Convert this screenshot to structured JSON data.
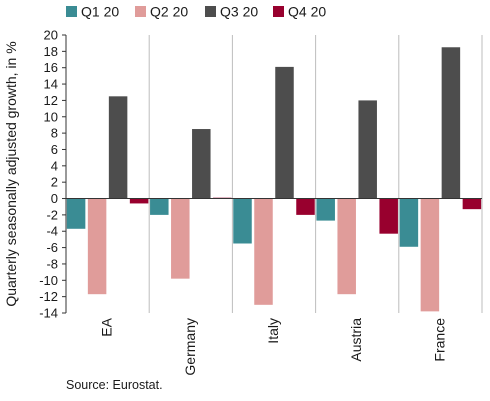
{
  "chart_data": {
    "type": "bar",
    "title": "",
    "xlabel": "",
    "ylabel": "Quarterly seasonally adjusted growth, in %",
    "ylim": [
      -14,
      20
    ],
    "ytick_step": 2,
    "grid": "vertical category separators only",
    "legend_position": "top",
    "categories": [
      "EA",
      "Germany",
      "Italy",
      "Austria",
      "France"
    ],
    "series": [
      {
        "name": "Q1 20",
        "color": "#3a8c94",
        "values": [
          -3.7,
          -2.0,
          -5.5,
          -2.7,
          -5.9
        ]
      },
      {
        "name": "Q2 20",
        "color": "#e09c9a",
        "values": [
          -11.7,
          -9.8,
          -13.0,
          -11.7,
          -13.8
        ]
      },
      {
        "name": "Q3 20",
        "color": "#4d4d4d",
        "values": [
          12.5,
          8.5,
          16.1,
          12.0,
          18.5
        ]
      },
      {
        "name": "Q4 20",
        "color": "#98002e",
        "values": [
          -0.6,
          0.1,
          -2.0,
          -4.3,
          -1.3
        ]
      }
    ]
  },
  "source": "Source: Eurostat."
}
